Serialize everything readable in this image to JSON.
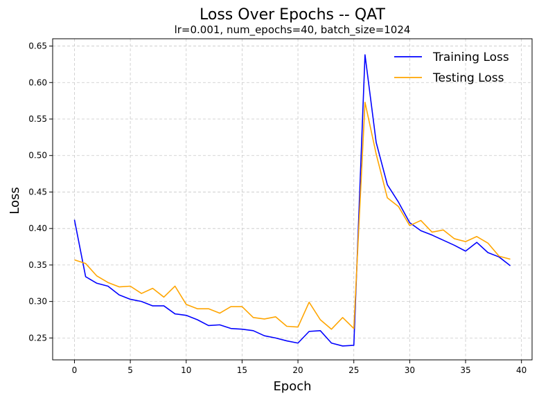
{
  "chart_data": {
    "type": "line",
    "title": "Loss Over Epochs -- QAT",
    "subtitle": "lr=0.001, num_epochs=40, batch_size=1024",
    "xlabel": "Epoch",
    "ylabel": "Loss",
    "xlim": [
      -1.95,
      40.95
    ],
    "ylim": [
      0.22,
      0.66
    ],
    "x_ticks": [
      0,
      5,
      10,
      15,
      20,
      25,
      30,
      35,
      40
    ],
    "y_ticks": [
      0.25,
      0.3,
      0.35,
      0.4,
      0.45,
      0.5,
      0.55,
      0.6,
      0.65
    ],
    "x_tick_labels": [
      "0",
      "5",
      "10",
      "15",
      "20",
      "25",
      "30",
      "35",
      "40"
    ],
    "y_tick_labels": [
      "0.25",
      "0.30",
      "0.35",
      "0.40",
      "0.45",
      "0.50",
      "0.55",
      "0.60",
      "0.65"
    ],
    "grid": true,
    "legend_position": "top-right",
    "x": [
      0,
      1,
      2,
      3,
      4,
      5,
      6,
      7,
      8,
      9,
      10,
      11,
      12,
      13,
      14,
      15,
      16,
      17,
      18,
      19,
      20,
      21,
      22,
      23,
      24,
      25,
      26,
      27,
      28,
      29,
      30,
      31,
      32,
      33,
      34,
      35,
      36,
      37,
      38,
      39
    ],
    "series": [
      {
        "name": "Training Loss",
        "color": "#0000ff",
        "values": [
          0.412,
          0.334,
          0.325,
          0.321,
          0.309,
          0.303,
          0.3,
          0.294,
          0.294,
          0.283,
          0.281,
          0.275,
          0.267,
          0.268,
          0.263,
          0.262,
          0.26,
          0.253,
          0.25,
          0.246,
          0.243,
          0.259,
          0.26,
          0.243,
          0.239,
          0.24,
          0.638,
          0.518,
          0.46,
          0.436,
          0.408,
          0.397,
          0.391,
          0.384,
          0.377,
          0.369,
          0.381,
          0.367,
          0.361,
          0.349
        ]
      },
      {
        "name": "Testing Loss",
        "color": "#ffa500",
        "values": [
          0.357,
          0.352,
          0.335,
          0.326,
          0.32,
          0.321,
          0.311,
          0.318,
          0.306,
          0.321,
          0.296,
          0.29,
          0.29,
          0.284,
          0.293,
          0.293,
          0.278,
          0.276,
          0.279,
          0.266,
          0.265,
          0.299,
          0.275,
          0.262,
          0.278,
          0.263,
          0.573,
          0.502,
          0.442,
          0.43,
          0.404,
          0.411,
          0.395,
          0.398,
          0.386,
          0.382,
          0.389,
          0.38,
          0.362,
          0.358
        ]
      }
    ]
  }
}
